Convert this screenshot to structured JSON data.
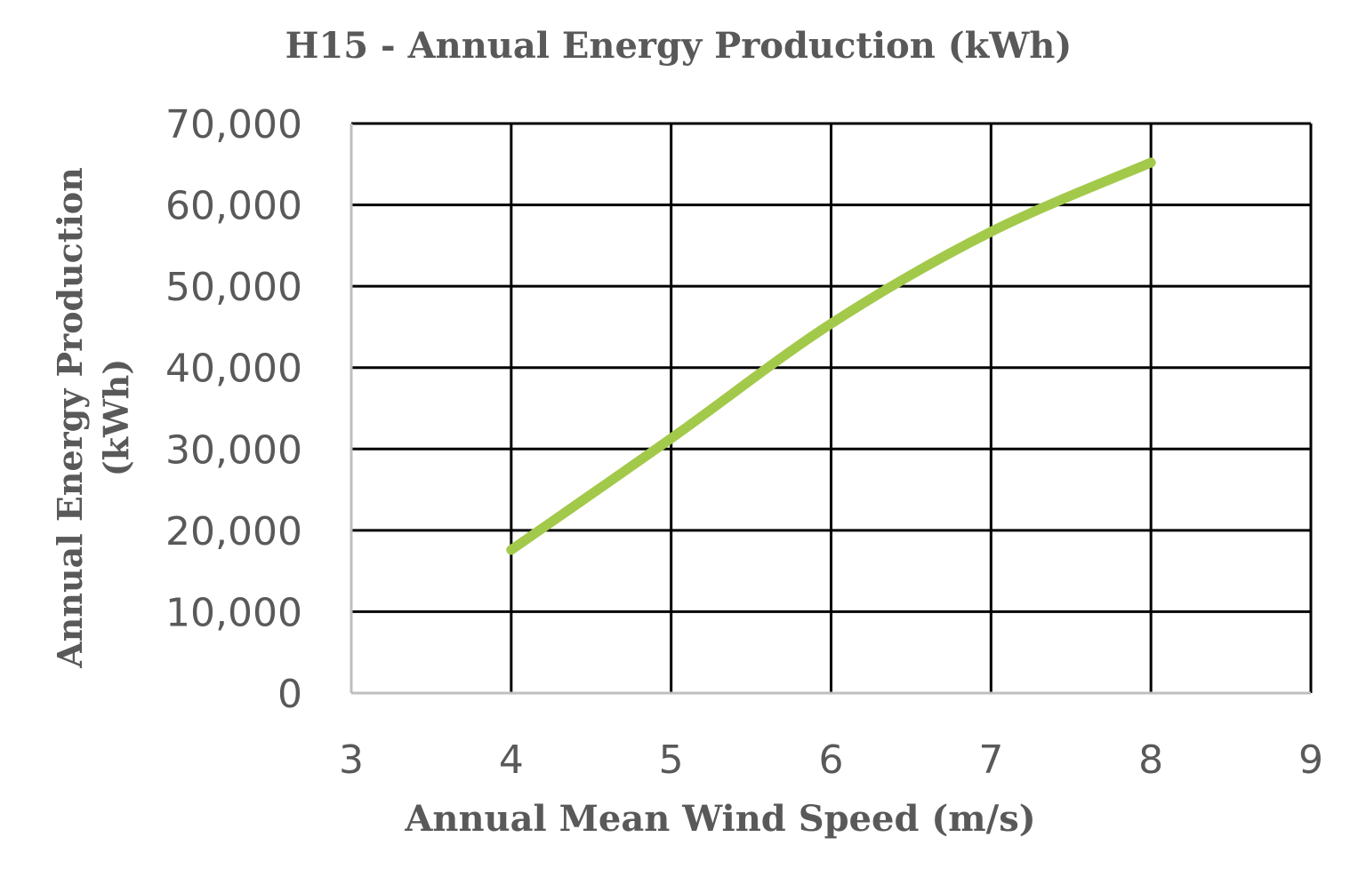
{
  "chart_data": {
    "type": "line",
    "title": "H15 - Annual Energy Production (kWh)",
    "xlabel": "Annual Mean Wind Speed (m/s)",
    "ylabel": "Annual Energy Production (kWh)",
    "xlim": [
      3,
      9
    ],
    "ylim": [
      0,
      70000
    ],
    "x_ticks": [
      "3",
      "4",
      "5",
      "6",
      "7",
      "8",
      "9"
    ],
    "y_ticks": [
      "0",
      "10,000",
      "20,000",
      "30,000",
      "40,000",
      "50,000",
      "60,000",
      "70,000"
    ],
    "grid": true,
    "legend": null,
    "series": [
      {
        "name": "H15",
        "color": "#a3c94a",
        "x": [
          4,
          5,
          6,
          7,
          8
        ],
        "values": [
          17600,
          31300,
          45400,
          56700,
          65200
        ]
      }
    ]
  },
  "colors": {
    "line": "#a3c94a",
    "grid": "#000000",
    "axis": "#bfbfbf",
    "text": "#595959"
  }
}
